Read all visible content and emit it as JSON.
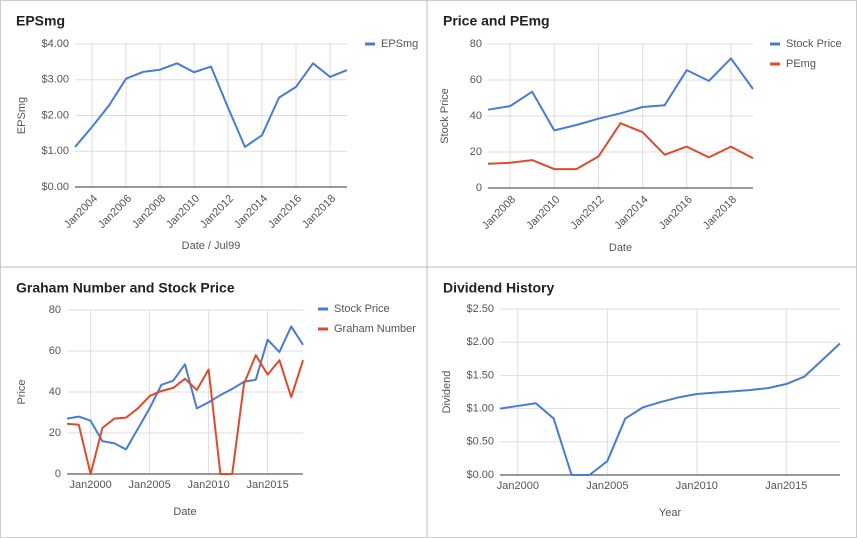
{
  "chart_data": [
    {
      "type": "line",
      "title": "EPSmg",
      "xlabel": "Date / Jul99",
      "ylabel": "EPSmg",
      "legend": "right",
      "x": [
        2003,
        2004,
        2005,
        2006,
        2007,
        2008,
        2009,
        2010,
        2011,
        2012,
        2013,
        2014,
        2015,
        2016,
        2017,
        2018,
        2019
      ],
      "series": [
        {
          "name": "EPSmg",
          "color": "#4a7bd4",
          "values": [
            1.12,
            1.68,
            2.28,
            3.03,
            3.22,
            3.28,
            3.46,
            3.21,
            3.37,
            2.22,
            1.12,
            1.45,
            2.5,
            2.8,
            3.46,
            3.08,
            3.27
          ]
        }
      ],
      "xlim": [
        2003,
        2019
      ],
      "ylim": [
        0,
        4
      ],
      "xticks": [
        {
          "value": 2004,
          "label": "Jan2004"
        },
        {
          "value": 2006,
          "label": "Jan2006"
        },
        {
          "value": 2008,
          "label": "Jan2008"
        },
        {
          "value": 2010,
          "label": "Jan2010"
        },
        {
          "value": 2012,
          "label": "Jan2012"
        },
        {
          "value": 2014,
          "label": "Jan2014"
        },
        {
          "value": 2016,
          "label": "Jan2016"
        },
        {
          "value": 2018,
          "label": "Jan2018"
        }
      ],
      "yticks": [
        {
          "value": 0,
          "label": "$0.00"
        },
        {
          "value": 1,
          "label": "$1.00"
        },
        {
          "value": 2,
          "label": "$2.00"
        },
        {
          "value": 3,
          "label": "$3.00"
        },
        {
          "value": 4,
          "label": "$4.00"
        }
      ],
      "grid": true
    },
    {
      "type": "line",
      "title": "Price and PEmg",
      "xlabel": "Date",
      "ylabel": "Stock Price",
      "legend": "right",
      "x": [
        2007,
        2008,
        2009,
        2010,
        2011,
        2012,
        2013,
        2014,
        2015,
        2016,
        2017,
        2018,
        2019
      ],
      "series": [
        {
          "name": "Stock Price",
          "color": "#4a7bd4",
          "values": [
            43.5,
            45.5,
            53.5,
            32,
            35,
            38.5,
            41.5,
            45,
            46,
            65.5,
            59.5,
            72,
            55
          ]
        },
        {
          "name": "PEmg",
          "color": "#dc4b2b",
          "values": [
            13.5,
            14,
            15.5,
            10.5,
            10.5,
            17.5,
            36,
            31,
            18.5,
            23,
            17,
            23,
            16.5
          ]
        }
      ],
      "xlim": [
        2007,
        2019
      ],
      "ylim": [
        0,
        80
      ],
      "xticks": [
        {
          "value": 2008,
          "label": "Jan2008"
        },
        {
          "value": 2010,
          "label": "Jan2010"
        },
        {
          "value": 2012,
          "label": "Jan2012"
        },
        {
          "value": 2014,
          "label": "Jan2014"
        },
        {
          "value": 2016,
          "label": "Jan2016"
        },
        {
          "value": 2018,
          "label": "Jan2018"
        }
      ],
      "yticks": [
        0,
        20,
        40,
        60,
        80
      ],
      "grid": true
    },
    {
      "type": "line",
      "title": "Graham Number and Stock Price",
      "xlabel": "Date",
      "ylabel": "Price",
      "legend": "right",
      "x": [
        1998,
        1999,
        2000,
        2001,
        2002,
        2003,
        2004,
        2005,
        2006,
        2007,
        2008,
        2009,
        2010,
        2011,
        2012,
        2013,
        2014,
        2015,
        2016,
        2017,
        2018
      ],
      "series": [
        {
          "name": "Stock Price",
          "color": "#4a7bd4",
          "values": [
            27,
            28,
            26,
            16,
            15,
            12,
            22,
            32,
            43.5,
            45.5,
            53.5,
            32,
            35,
            38.5,
            41.5,
            45,
            46,
            65.5,
            59.5,
            72,
            63
          ]
        },
        {
          "name": "Graham Number",
          "color": "#dc4b2b",
          "values": [
            24.5,
            24,
            0,
            22.5,
            27,
            27.5,
            32,
            38,
            40.5,
            42,
            46.5,
            41,
            51,
            0,
            0,
            44,
            58,
            48.5,
            55.5,
            37.5,
            55.5
          ]
        }
      ],
      "xlim": [
        1998,
        2018
      ],
      "ylim": [
        0,
        80
      ],
      "xticks": [
        {
          "value": 2000,
          "label": "Jan2000"
        },
        {
          "value": 2005,
          "label": "Jan2005"
        },
        {
          "value": 2010,
          "label": "Jan2010"
        },
        {
          "value": 2015,
          "label": "Jan2015"
        }
      ],
      "yticks": [
        0,
        20,
        40,
        60,
        80
      ],
      "grid": true
    },
    {
      "type": "line",
      "title": "Dividend History",
      "xlabel": "Year",
      "ylabel": "Dividend",
      "legend": "none",
      "x": [
        1999,
        2000,
        2001,
        2002,
        2003,
        2004,
        2005,
        2006,
        2007,
        2008,
        2009,
        2010,
        2011,
        2012,
        2013,
        2014,
        2015,
        2016,
        2017,
        2018
      ],
      "series": [
        {
          "name": "Dividend",
          "color": "#4a7bd4",
          "values": [
            1.0,
            1.04,
            1.08,
            0.85,
            0,
            0,
            0.21,
            0.85,
            1.02,
            1.1,
            1.17,
            1.22,
            1.24,
            1.26,
            1.28,
            1.31,
            1.37,
            1.48,
            1.73,
            1.98
          ]
        }
      ],
      "xlim": [
        1999,
        2018
      ],
      "ylim": [
        0,
        2.5
      ],
      "xticks": [
        {
          "value": 2000,
          "label": "Jan2000"
        },
        {
          "value": 2005,
          "label": "Jan2005"
        },
        {
          "value": 2010,
          "label": "Jan2010"
        },
        {
          "value": 2015,
          "label": "Jan2015"
        }
      ],
      "yticks": [
        {
          "value": 0,
          "label": "$0.00"
        },
        {
          "value": 0.5,
          "label": "$0.50"
        },
        {
          "value": 1,
          "label": "$1.00"
        },
        {
          "value": 1.5,
          "label": "$1.50"
        },
        {
          "value": 2,
          "label": "$2.00"
        },
        {
          "value": 2.5,
          "label": "$2.50"
        }
      ],
      "grid": true
    }
  ]
}
